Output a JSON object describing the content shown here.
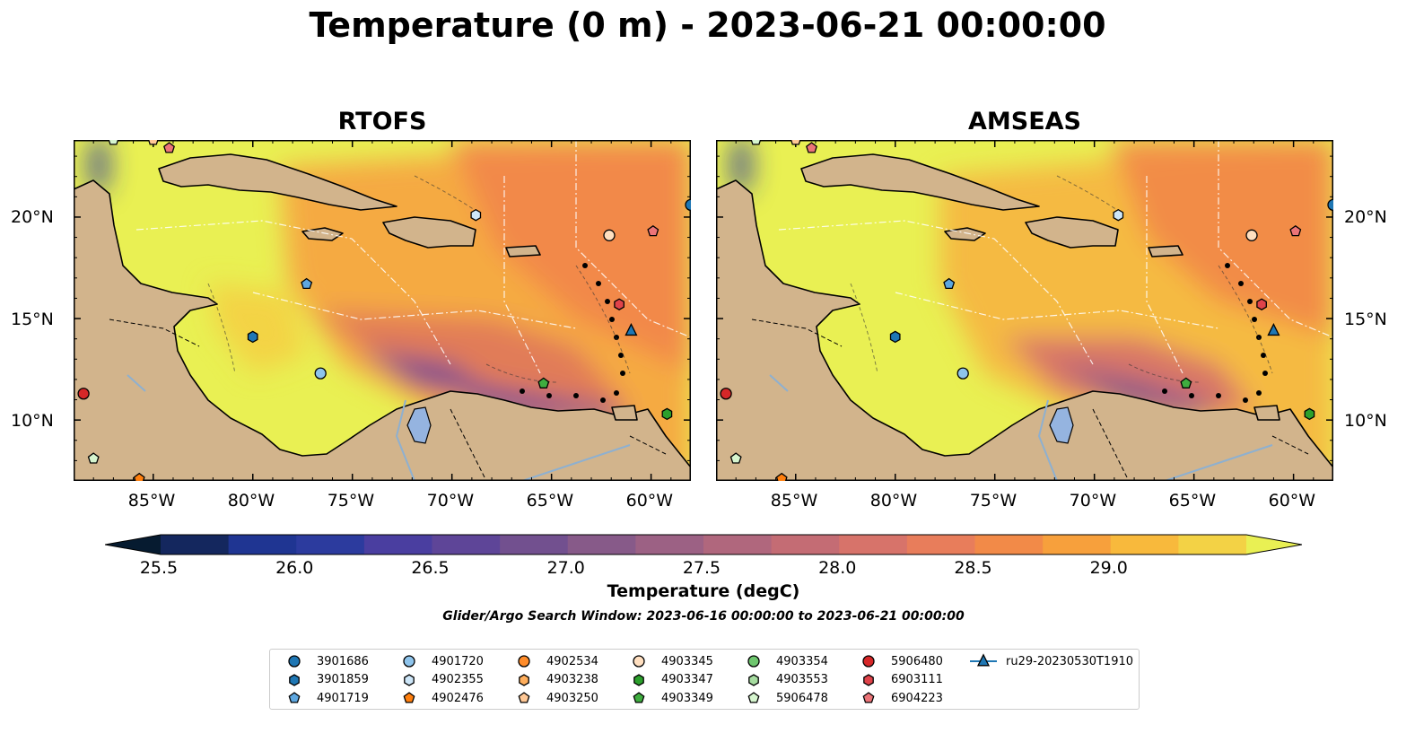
{
  "title": "Temperature (0 m) - 2023-06-21 00:00:00",
  "panels": [
    {
      "title": "RTOFS"
    },
    {
      "title": "AMSEAS"
    }
  ],
  "axes": {
    "lon_ticks": [
      "85°W",
      "80°W",
      "75°W",
      "70°W",
      "65°W",
      "60°W"
    ],
    "lat_ticks": [
      "20°N",
      "15°N",
      "10°N"
    ]
  },
  "colorbar": {
    "ticks": [
      "25.5",
      "26.0",
      "26.5",
      "27.0",
      "27.5",
      "28.0",
      "28.5",
      "29.0"
    ],
    "label": "Temperature (degC)",
    "colors": [
      "#061b30",
      "#14275e",
      "#1f3592",
      "#2c3b9e",
      "#4a3ea0",
      "#5e4598",
      "#72508f",
      "#875a89",
      "#9c6184",
      "#b0677d",
      "#c46c74",
      "#d7736a",
      "#e87d5b",
      "#f28a48",
      "#f7a03c",
      "#f8b93c",
      "#f3d245",
      "#e9f053"
    ]
  },
  "search_window": "Glider/Argo Search Window: 2023-06-16 00:00:00 to 2023-06-21 00:00:00",
  "legend": {
    "items": [
      {
        "label": "3901686",
        "marker": "circle",
        "color": "#1f77b4"
      },
      {
        "label": "3901859",
        "marker": "hexagon",
        "color": "#1f77b4"
      },
      {
        "label": "4901719",
        "marker": "pentagon",
        "color": "#5ea7e0"
      },
      {
        "label": "4901720",
        "marker": "circle",
        "color": "#8ec4ec"
      },
      {
        "label": "4902355",
        "marker": "hexagon",
        "color": "#cde6f8"
      },
      {
        "label": "4902476",
        "marker": "pentagon",
        "color": "#ff7f0e"
      },
      {
        "label": "4902534",
        "marker": "circle",
        "color": "#ff8c2a"
      },
      {
        "label": "4903238",
        "marker": "hexagon",
        "color": "#ffae5c"
      },
      {
        "label": "4903250",
        "marker": "pentagon",
        "color": "#ffc896"
      },
      {
        "label": "4903345",
        "marker": "circle",
        "color": "#ffdfc0"
      },
      {
        "label": "4903347",
        "marker": "hexagon",
        "color": "#2ca02c"
      },
      {
        "label": "4903349",
        "marker": "pentagon",
        "color": "#3fad3f"
      },
      {
        "label": "4903354",
        "marker": "circle",
        "color": "#6ec66e"
      },
      {
        "label": "4903553",
        "marker": "hexagon",
        "color": "#a6dca0"
      },
      {
        "label": "5906478",
        "marker": "pentagon",
        "color": "#d6f5cf"
      },
      {
        "label": "5906480",
        "marker": "circle",
        "color": "#d62728"
      },
      {
        "label": "6903111",
        "marker": "hexagon",
        "color": "#e0434a"
      },
      {
        "label": "6904223",
        "marker": "pentagon",
        "color": "#ec7478"
      },
      {
        "label": "ru29-20230530T1910",
        "marker": "triangle-line",
        "color": "#1f77b4"
      }
    ]
  },
  "map_markers": [
    {
      "id": "5906478",
      "lon": -87,
      "lat": 23.8
    },
    {
      "id": "4903250",
      "lon": -85,
      "lat": 23.8
    },
    {
      "id": "6904223",
      "lon": -84.2,
      "lat": 23.4
    },
    {
      "id": "3901686",
      "lon": -58,
      "lat": 20.6
    },
    {
      "id": "4902355",
      "lon": -68.8,
      "lat": 20.1
    },
    {
      "id": "6904223",
      "lon": -59.9,
      "lat": 19.3
    },
    {
      "id": "4903345",
      "lon": -62.1,
      "lat": 19.1
    },
    {
      "id": "4901719",
      "lon": -77.3,
      "lat": 16.7
    },
    {
      "id": "6903111",
      "lon": -61.6,
      "lat": 15.7
    },
    {
      "id": "ru29-20230530T1910",
      "lon": -61,
      "lat": 14.4
    },
    {
      "id": "3901859",
      "lon": -80,
      "lat": 14.1
    },
    {
      "id": "4901720",
      "lon": -76.6,
      "lat": 12.3
    },
    {
      "id": "5906480",
      "lon": -88.5,
      "lat": 11.3
    },
    {
      "id": "4903349",
      "lon": -65.4,
      "lat": 11.8
    },
    {
      "id": "4903347",
      "lon": -59.2,
      "lat": 10.3
    },
    {
      "id": "5906478",
      "lon": -88,
      "lat": 8.1
    },
    {
      "id": "4902476",
      "lon": -85.7,
      "lat": 7.1
    }
  ]
}
